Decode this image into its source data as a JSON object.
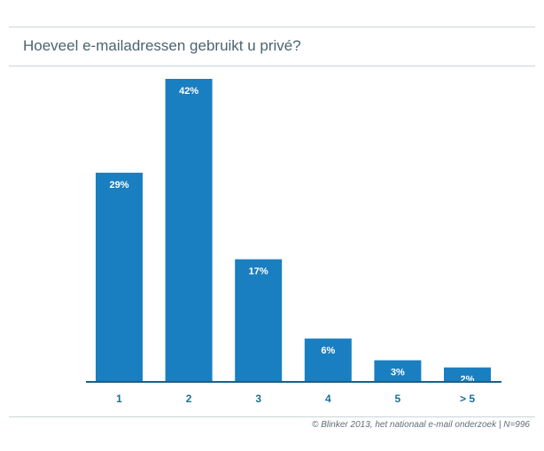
{
  "header": {
    "title": "Hoeveel e-mailadressen gebruikt u privé?"
  },
  "footer": {
    "source": "© Blinker 2013, het nationaal e-mail onderzoek | N=996"
  },
  "colors": {
    "bar": "#1a7fc1",
    "axis": "#1a5f88",
    "category_text": "#1b6e96"
  },
  "chart_data": {
    "type": "bar",
    "title": "Hoeveel e-mailadressen gebruikt u privé?",
    "categories": [
      "1",
      "2",
      "3",
      "4",
      "5",
      "> 5"
    ],
    "values": [
      29,
      42,
      17,
      6,
      3,
      2
    ],
    "value_labels": [
      "29%",
      "42%",
      "17%",
      "6%",
      "3%",
      "2%"
    ],
    "unit": "%",
    "ylim": [
      0,
      42
    ],
    "grid": false,
    "legend": "none"
  }
}
